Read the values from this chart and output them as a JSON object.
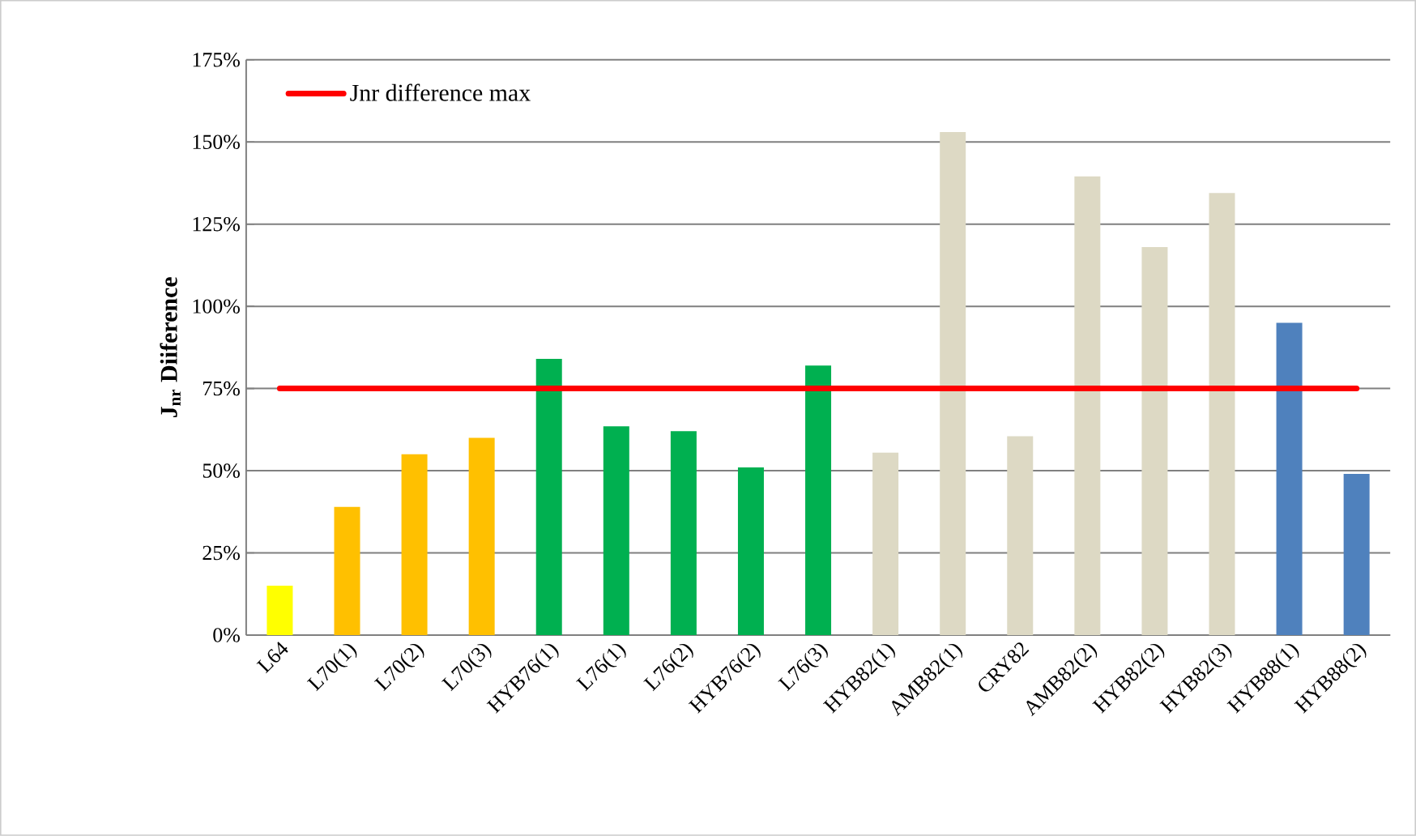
{
  "chart_data": {
    "type": "bar",
    "ylabel": "J$_{nr}$ Diiference",
    "categories": [
      "L64",
      "L70(1)",
      "L70(2)",
      "L70(3)",
      "HYB76(1)",
      "L76(1)",
      "L76(2)",
      "HYB76(2)",
      "L76(3)",
      "HYB82(1)",
      "AMB82(1)",
      "CRY82",
      "AMB82(2)",
      "HYB82(2)",
      "HYB82(3)",
      "HYB88(1)",
      "HYB88(2)"
    ],
    "values": [
      15,
      39,
      55,
      60,
      84,
      63.5,
      62,
      51,
      82,
      55.5,
      153,
      60.5,
      139.5,
      118,
      134.5,
      95,
      49
    ],
    "colors": [
      "#ffff00",
      "#ffc000",
      "#ffc000",
      "#ffc000",
      "#00b050",
      "#00b050",
      "#00b050",
      "#00b050",
      "#00b050",
      "#ddd9c4",
      "#ddd9c4",
      "#ddd9c4",
      "#ddd9c4",
      "#ddd9c4",
      "#ddd9c4",
      "#4f81bd",
      "#4f81bd"
    ],
    "ylim": [
      0,
      175
    ],
    "yticks": [
      {
        "value": 0,
        "label": "0%"
      },
      {
        "value": 25,
        "label": "25%"
      },
      {
        "value": 50,
        "label": "50%"
      },
      {
        "value": 75,
        "label": "75%"
      },
      {
        "value": 100,
        "label": "100%"
      },
      {
        "value": 125,
        "label": "125%"
      },
      {
        "value": 150,
        "label": "150%"
      },
      {
        "value": 175,
        "label": "175%"
      }
    ],
    "ref_lines": [
      {
        "axis": "y",
        "value": 75,
        "label": "Jnr difference max",
        "color": "#ff0000"
      }
    ],
    "grid": "y",
    "legend": "top left"
  }
}
